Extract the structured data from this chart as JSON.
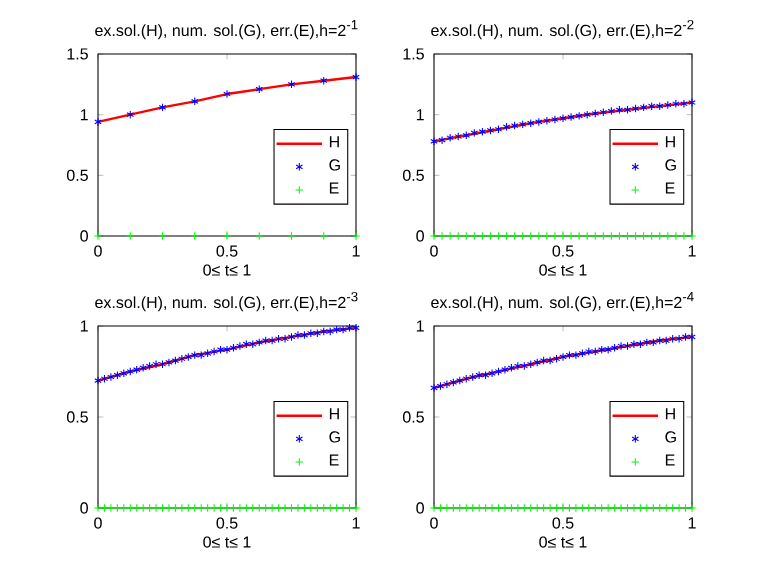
{
  "chart_data": [
    {
      "type": "line",
      "title": "ex.sol.(H), num. sol.(G), err.(E),h=2$^{-1}$",
      "xlabel": "0≤ t≤ 1",
      "xlim": [
        0,
        1
      ],
      "ylim": [
        0,
        1.5
      ],
      "xticks": [
        0,
        0.5,
        1
      ],
      "yticks": [
        0,
        0.5,
        1,
        1.5
      ],
      "legend": "right",
      "series": [
        {
          "name": "H",
          "color": "#ff0000",
          "line_style": "solid",
          "marker": "none",
          "x": [
            0,
            0.125,
            0.25,
            0.375,
            0.5,
            0.625,
            0.75,
            0.875,
            1
          ],
          "values": [
            0.94,
            1.0,
            1.06,
            1.11,
            1.17,
            1.21,
            1.25,
            1.28,
            1.31
          ]
        },
        {
          "name": "G",
          "type": "scatter",
          "color": "#0000ff",
          "x": [
            0,
            0.125,
            0.25,
            0.375,
            0.5,
            0.625,
            0.75,
            0.875,
            1
          ],
          "values": [
            0.94,
            1.0,
            1.06,
            1.11,
            1.17,
            1.21,
            1.25,
            1.28,
            1.31
          ]
        },
        {
          "name": "E",
          "type": "scatter",
          "color": "#00ff00",
          "marker": "cross",
          "x": [
            0,
            0.125,
            0.25,
            0.375,
            0.5,
            0.625,
            0.75,
            0.875,
            1
          ],
          "values": [
            0,
            0,
            0,
            0,
            0,
            0,
            0,
            0,
            0
          ]
        }
      ]
    },
    {
      "type": "line",
      "title": "ex.sol.(H), num. sol.(G), err.(E),h=2$^{-2}$",
      "xlabel": "0≤ t≤ 1",
      "xlim": [
        0,
        1
      ],
      "ylim": [
        0,
        1.5
      ],
      "xticks": [
        0,
        0.5,
        1
      ],
      "yticks": [
        0,
        0.5,
        1,
        1.5
      ],
      "legend": "right",
      "series": [
        {
          "name": "H",
          "color": "#ff0000",
          "line_style": "solid",
          "marker": "none",
          "x": [
            0,
            0.125,
            0.25,
            0.375,
            0.5,
            0.625,
            0.75,
            0.875,
            1
          ],
          "values": [
            0.78,
            0.83,
            0.88,
            0.93,
            0.97,
            1.01,
            1.04,
            1.07,
            1.1
          ]
        },
        {
          "name": "G",
          "type": "scatter",
          "color": "#0000ff",
          "x": [
            0,
            0.03125,
            0.0625,
            0.09375,
            0.125,
            0.15625,
            0.1875,
            0.21875,
            0.25,
            0.28125,
            0.3125,
            0.34375,
            0.375,
            0.40625,
            0.4375,
            0.46875,
            0.5,
            0.53125,
            0.5625,
            0.59375,
            0.625,
            0.65625,
            0.6875,
            0.71875,
            0.75,
            0.78125,
            0.8125,
            0.84375,
            0.875,
            0.90625,
            0.9375,
            0.96875,
            1
          ],
          "values": [
            0.78,
            0.79,
            0.81,
            0.82,
            0.83,
            0.85,
            0.86,
            0.87,
            0.88,
            0.9,
            0.91,
            0.92,
            0.93,
            0.94,
            0.95,
            0.96,
            0.97,
            0.98,
            0.99,
            1.0,
            1.01,
            1.02,
            1.03,
            1.04,
            1.04,
            1.05,
            1.06,
            1.07,
            1.07,
            1.08,
            1.09,
            1.09,
            1.1
          ]
        },
        {
          "name": "E",
          "type": "scatter",
          "color": "#00ff00",
          "marker": "cross",
          "x": [
            0,
            0.03125,
            0.0625,
            0.09375,
            0.125,
            0.15625,
            0.1875,
            0.21875,
            0.25,
            0.28125,
            0.3125,
            0.34375,
            0.375,
            0.40625,
            0.4375,
            0.46875,
            0.5,
            0.53125,
            0.5625,
            0.59375,
            0.625,
            0.65625,
            0.6875,
            0.71875,
            0.75,
            0.78125,
            0.8125,
            0.84375,
            0.875,
            0.90625,
            0.9375,
            0.96875,
            1
          ],
          "values": [
            0,
            0,
            0,
            0,
            0,
            0,
            0,
            0,
            0,
            0,
            0,
            0,
            0,
            0,
            0,
            0,
            0,
            0,
            0,
            0,
            0,
            0,
            0,
            0,
            0,
            0,
            0,
            0,
            0,
            0,
            0,
            0,
            0
          ]
        }
      ]
    },
    {
      "type": "line",
      "title": "ex.sol.(H), num. sol.(G), err.(E),h=2$^{-3}$",
      "xlabel": "0≤ t≤ 1",
      "xlim": [
        0,
        1
      ],
      "ylim": [
        0,
        1
      ],
      "xticks": [
        0,
        0.5,
        1
      ],
      "yticks": [
        0,
        0.5,
        1
      ],
      "legend": "right",
      "series": [
        {
          "name": "H",
          "color": "#ff0000",
          "line_style": "solid",
          "marker": "none",
          "x": [
            0,
            0.125,
            0.25,
            0.375,
            0.5,
            0.625,
            0.75,
            0.875,
            1
          ],
          "values": [
            0.7,
            0.75,
            0.79,
            0.84,
            0.87,
            0.91,
            0.94,
            0.97,
            0.99
          ]
        },
        {
          "name": "G",
          "type": "scatter",
          "color": "#0000ff",
          "x": [
            0,
            0.025,
            0.05,
            0.075,
            0.1,
            0.125,
            0.15,
            0.175,
            0.2,
            0.225,
            0.25,
            0.275,
            0.3,
            0.325,
            0.35,
            0.375,
            0.4,
            0.425,
            0.45,
            0.475,
            0.5,
            0.525,
            0.55,
            0.575,
            0.6,
            0.625,
            0.65,
            0.675,
            0.7,
            0.725,
            0.75,
            0.775,
            0.8,
            0.825,
            0.85,
            0.875,
            0.9,
            0.925,
            0.95,
            0.975,
            1
          ],
          "values": [
            0.7,
            0.71,
            0.72,
            0.73,
            0.74,
            0.75,
            0.76,
            0.77,
            0.78,
            0.79,
            0.79,
            0.8,
            0.81,
            0.82,
            0.83,
            0.84,
            0.84,
            0.85,
            0.86,
            0.87,
            0.87,
            0.88,
            0.89,
            0.9,
            0.9,
            0.91,
            0.92,
            0.92,
            0.93,
            0.93,
            0.94,
            0.95,
            0.95,
            0.96,
            0.96,
            0.97,
            0.97,
            0.98,
            0.98,
            0.99,
            0.99
          ]
        },
        {
          "name": "E",
          "type": "scatter",
          "color": "#00ff00",
          "marker": "cross",
          "x": [
            0,
            0.025,
            0.05,
            0.075,
            0.1,
            0.125,
            0.15,
            0.175,
            0.2,
            0.225,
            0.25,
            0.275,
            0.3,
            0.325,
            0.35,
            0.375,
            0.4,
            0.425,
            0.45,
            0.475,
            0.5,
            0.525,
            0.55,
            0.575,
            0.6,
            0.625,
            0.65,
            0.675,
            0.7,
            0.725,
            0.75,
            0.775,
            0.8,
            0.825,
            0.85,
            0.875,
            0.9,
            0.925,
            0.95,
            0.975,
            1
          ],
          "values": [
            0,
            0,
            0,
            0,
            0,
            0,
            0,
            0,
            0,
            0,
            0,
            0,
            0,
            0,
            0,
            0,
            0,
            0,
            0,
            0,
            0,
            0,
            0,
            0,
            0,
            0,
            0,
            0,
            0,
            0,
            0,
            0,
            0,
            0,
            0,
            0,
            0,
            0,
            0,
            0,
            0
          ]
        }
      ]
    },
    {
      "type": "line",
      "title": "ex.sol.(H), num. sol.(G), err.(E),h=2$^{-4}$",
      "xlabel": "0≤ t≤ 1",
      "xlim": [
        0,
        1
      ],
      "ylim": [
        0,
        1
      ],
      "xticks": [
        0,
        0.5,
        1
      ],
      "yticks": [
        0,
        0.5,
        1
      ],
      "legend": "right",
      "series": [
        {
          "name": "H",
          "color": "#ff0000",
          "line_style": "solid",
          "marker": "none",
          "x": [
            0,
            0.125,
            0.25,
            0.375,
            0.5,
            0.625,
            0.75,
            0.875,
            1
          ],
          "values": [
            0.66,
            0.71,
            0.75,
            0.79,
            0.83,
            0.86,
            0.89,
            0.92,
            0.94
          ]
        },
        {
          "name": "G",
          "type": "scatter",
          "color": "#0000ff",
          "x": [
            0,
            0.025,
            0.05,
            0.075,
            0.1,
            0.125,
            0.15,
            0.175,
            0.2,
            0.225,
            0.25,
            0.275,
            0.3,
            0.325,
            0.35,
            0.375,
            0.4,
            0.425,
            0.45,
            0.475,
            0.5,
            0.525,
            0.55,
            0.575,
            0.6,
            0.625,
            0.65,
            0.675,
            0.7,
            0.725,
            0.75,
            0.775,
            0.8,
            0.825,
            0.85,
            0.875,
            0.9,
            0.925,
            0.95,
            0.975,
            1
          ],
          "values": [
            0.66,
            0.67,
            0.68,
            0.69,
            0.7,
            0.71,
            0.72,
            0.73,
            0.73,
            0.74,
            0.75,
            0.76,
            0.77,
            0.78,
            0.78,
            0.79,
            0.8,
            0.81,
            0.81,
            0.82,
            0.83,
            0.84,
            0.84,
            0.85,
            0.86,
            0.86,
            0.87,
            0.87,
            0.88,
            0.89,
            0.89,
            0.9,
            0.9,
            0.91,
            0.91,
            0.92,
            0.92,
            0.93,
            0.93,
            0.94,
            0.94
          ]
        },
        {
          "name": "E",
          "type": "scatter",
          "color": "#00ff00",
          "marker": "cross",
          "x": [
            0,
            0.025,
            0.05,
            0.075,
            0.1,
            0.125,
            0.15,
            0.175,
            0.2,
            0.225,
            0.25,
            0.275,
            0.3,
            0.325,
            0.35,
            0.375,
            0.4,
            0.425,
            0.45,
            0.475,
            0.5,
            0.525,
            0.55,
            0.575,
            0.6,
            0.625,
            0.65,
            0.675,
            0.7,
            0.725,
            0.75,
            0.775,
            0.8,
            0.825,
            0.85,
            0.875,
            0.9,
            0.925,
            0.95,
            0.975,
            1
          ],
          "values": [
            0,
            0,
            0,
            0,
            0,
            0,
            0,
            0,
            0,
            0,
            0,
            0,
            0,
            0,
            0,
            0,
            0,
            0,
            0,
            0,
            0,
            0,
            0,
            0,
            0,
            0,
            0,
            0,
            0,
            0,
            0,
            0,
            0,
            0,
            0,
            0,
            0,
            0,
            0,
            0,
            0
          ]
        }
      ]
    }
  ]
}
